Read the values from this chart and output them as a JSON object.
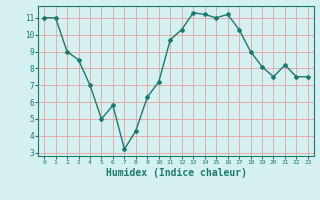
{
  "x": [
    0,
    1,
    2,
    3,
    4,
    5,
    6,
    7,
    8,
    9,
    10,
    11,
    12,
    13,
    14,
    15,
    16,
    17,
    18,
    19,
    20,
    21,
    22,
    23
  ],
  "y": [
    11,
    11,
    9,
    8.5,
    7,
    5,
    5.8,
    3.2,
    4.3,
    6.3,
    7.2,
    9.7,
    10.3,
    11.3,
    11.2,
    11,
    11.2,
    10.3,
    9,
    8.1,
    7.5,
    8.2,
    7.5,
    7.5
  ],
  "line_color": "#1a7a6e",
  "marker": "D",
  "markersize": 2,
  "linewidth": 1.0,
  "xlabel": "Humidex (Indice chaleur)",
  "xlabel_fontsize": 7,
  "bg_color": "#d4f0f0",
  "grid_color": "#e8a0a0",
  "yticks": [
    3,
    4,
    5,
    6,
    7,
    8,
    9,
    10,
    11
  ],
  "ylim": [
    2.8,
    11.7
  ],
  "xlim": [
    -0.5,
    23.5
  ],
  "xtick_labels": [
    "0",
    "1",
    "2",
    "3",
    "4",
    "5",
    "6",
    "7",
    "8",
    "9",
    "10",
    "11",
    "12",
    "13",
    "14",
    "15",
    "16",
    "17",
    "18",
    "19",
    "20",
    "21",
    "22",
    "23"
  ]
}
